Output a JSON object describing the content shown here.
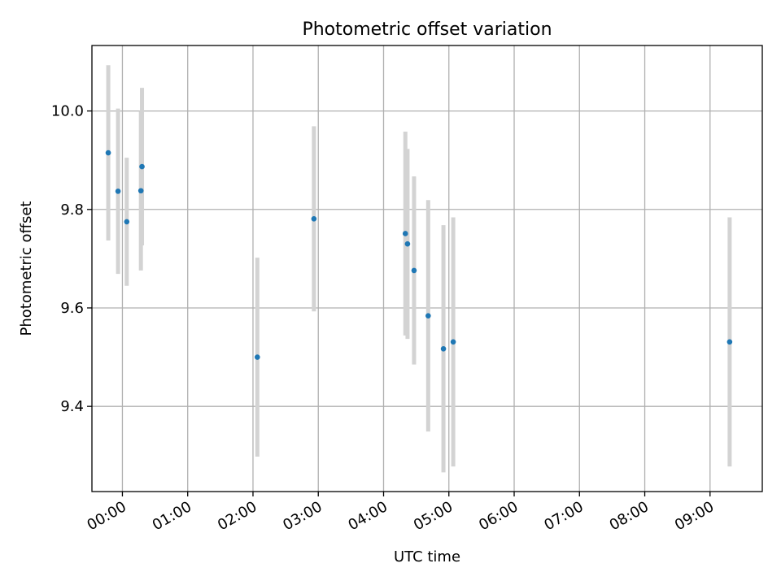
{
  "chart_data": {
    "type": "scatter",
    "title": "Photometric offset variation",
    "xlabel": "UTC time",
    "ylabel": "Photometric offset",
    "x_unit": "time (HH:MM UTC)",
    "xlim": [
      "-00:28",
      "09:48"
    ],
    "ylim": [
      9.227,
      10.133
    ],
    "x_ticks": [
      "00:00",
      "01:00",
      "02:00",
      "03:00",
      "04:00",
      "05:00",
      "06:00",
      "07:00",
      "08:00",
      "09:00"
    ],
    "y_ticks": [
      9.4,
      9.6,
      9.8,
      10.0
    ],
    "y_tick_labels": [
      "9.4",
      "9.6",
      "9.8",
      "10.0"
    ],
    "grid": true,
    "error_bar_style": "vertical, light gray",
    "colors": {
      "points": "#1f77b4",
      "error_bars": "#d3d3d3",
      "grid": "#b0b0b0"
    },
    "points": [
      {
        "x": "-00:13",
        "y": 9.915,
        "err": 0.178
      },
      {
        "x": "-00:04",
        "y": 9.837,
        "err": 0.168
      },
      {
        "x": "00:04",
        "y": 9.775,
        "err": 0.13
      },
      {
        "x": "00:17",
        "y": 9.838,
        "err": 0.162
      },
      {
        "x": "00:18",
        "y": 9.887,
        "err": 0.16
      },
      {
        "x": "02:04",
        "y": 9.5,
        "err": 0.202
      },
      {
        "x": "02:56",
        "y": 9.781,
        "err": 0.188
      },
      {
        "x": "04:20",
        "y": 9.751,
        "err": 0.207
      },
      {
        "x": "04:22",
        "y": 9.73,
        "err": 0.193
      },
      {
        "x": "04:28",
        "y": 9.676,
        "err": 0.191
      },
      {
        "x": "04:41",
        "y": 9.584,
        "err": 0.235
      },
      {
        "x": "04:55",
        "y": 9.517,
        "err": 0.251
      },
      {
        "x": "05:04",
        "y": 9.531,
        "err": 0.253
      },
      {
        "x": "09:18",
        "y": 9.531,
        "err": 0.253
      }
    ]
  }
}
